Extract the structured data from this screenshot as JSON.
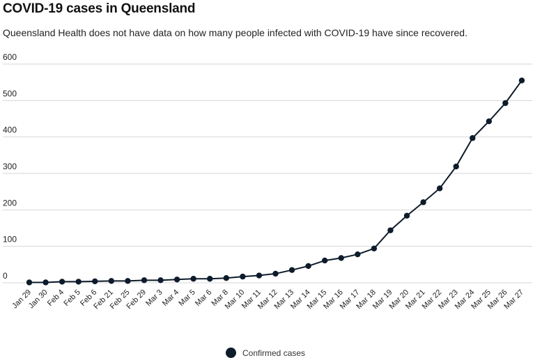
{
  "header": {
    "title": "COVID-19 cases in Queensland",
    "subtitle": "Queensland Health does not have data on how many people infected with COVID-19 have since recovered."
  },
  "legend": {
    "label": "Confirmed cases"
  },
  "colors": {
    "series": "#0d1b2a",
    "grid": "#d6d6d6"
  },
  "chart_data": {
    "type": "line",
    "title": "COVID-19 cases in Queensland",
    "subtitle": "Queensland Health does not have data on how many people infected with COVID-19 have since recovered.",
    "xlabel": "",
    "ylabel": "",
    "ylim": [
      0,
      600
    ],
    "yticks": [
      0,
      100,
      200,
      300,
      400,
      500,
      600
    ],
    "grid": true,
    "legend_position": "bottom",
    "categories": [
      "Jan 29",
      "Jan 30",
      "Feb 4",
      "Feb 5",
      "Feb 6",
      "Feb 21",
      "Feb 25",
      "Feb 29",
      "Mar 3",
      "Mar 4",
      "Mar 5",
      "Mar 6",
      "Mar 8",
      "Mar 10",
      "Mar 11",
      "Mar 12",
      "Mar 13",
      "Mar 14",
      "Mar 15",
      "Mar 16",
      "Mar 17",
      "Mar 18",
      "Mar 19",
      "Mar 20",
      "Mar 21",
      "Mar 22",
      "Mar 23",
      "Mar 24",
      "Mar 25",
      "Mar 26",
      "Mar 27"
    ],
    "series": [
      {
        "name": "Confirmed cases",
        "values": [
          1,
          1,
          3,
          3,
          4,
          5,
          5,
          7,
          7,
          9,
          11,
          11,
          13,
          17,
          20,
          25,
          35,
          46,
          61,
          68,
          78,
          94,
          144,
          184,
          221,
          259,
          319,
          397,
          443,
          493,
          555
        ]
      }
    ]
  }
}
